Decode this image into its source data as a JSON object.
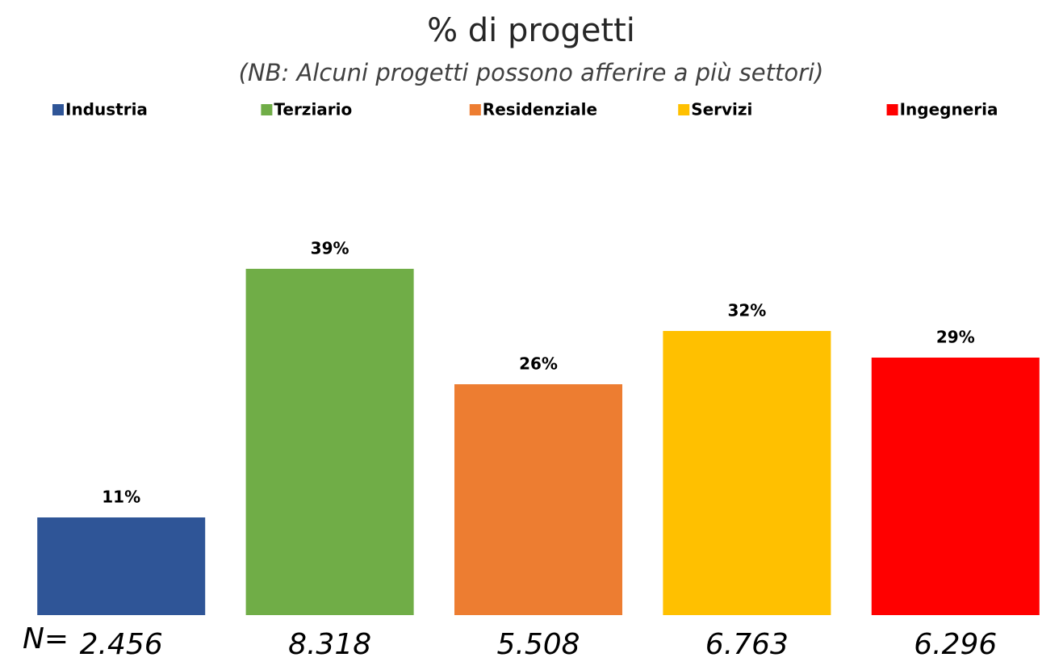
{
  "chart_data": {
    "type": "bar",
    "title": "% di progetti",
    "subtitle": "(NB: Alcuni progetti possono afferire a più settori)",
    "categories": [
      "Industria",
      "Terziario",
      "Residenziale",
      "Servizi",
      "Ingegneria"
    ],
    "colors": [
      "#2f5597",
      "#70ad47",
      "#ed7d31",
      "#ffc000",
      "#ff0000"
    ],
    "values": [
      11,
      39,
      26,
      32,
      29
    ],
    "value_labels": [
      "11%",
      "39%",
      "26%",
      "32%",
      "29%"
    ],
    "ylim": [
      0,
      40
    ],
    "sample_size_prefix": "N=",
    "sample_size_labels": [
      "2.456",
      "8.318",
      "5.508",
      "6.763",
      "6.296"
    ]
  }
}
